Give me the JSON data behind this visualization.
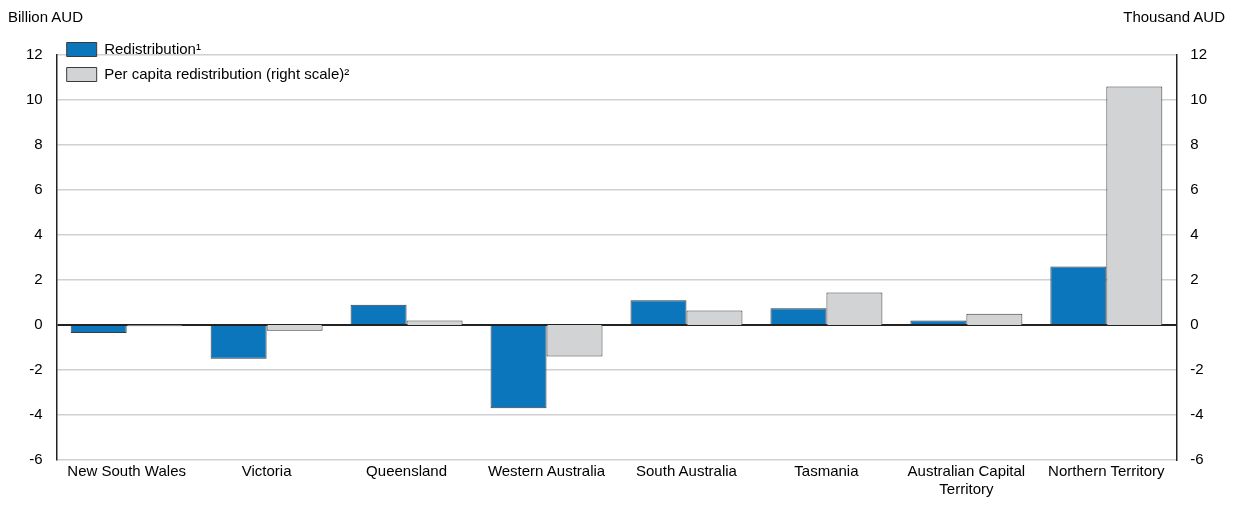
{
  "chart_data": {
    "type": "bar",
    "ylabel": "Billion AUD",
    "y2label": "Thousand AUD",
    "categories": [
      "New South Wales",
      "Victoria",
      "Queensland",
      "Western Australia",
      "South Australia",
      "Tasmania",
      "Australian Capital Territory",
      "Northern Territory"
    ],
    "series": [
      {
        "name": "Redistribution¹",
        "color": "#0b76bc",
        "values": [
          -0.35,
          -1.5,
          0.9,
          -3.7,
          1.1,
          0.75,
          0.2,
          2.6
        ]
      },
      {
        "name": "Per capita redistribution (right scale)²",
        "color": "#d2d3d5",
        "axis": "y2",
        "values": [
          -0.05,
          -0.25,
          0.2,
          -1.4,
          0.65,
          1.45,
          0.5,
          10.6
        ]
      }
    ],
    "ylim": [
      -6,
      12
    ],
    "yticks": [
      -6,
      -4,
      -2,
      0,
      2,
      4,
      6,
      8,
      10,
      12
    ],
    "y2lim": [
      -6,
      12
    ],
    "y2ticks": [
      -6,
      -4,
      -2,
      0,
      2,
      4,
      6,
      8,
      10,
      12
    ],
    "grid": "y",
    "legend": "top left"
  }
}
